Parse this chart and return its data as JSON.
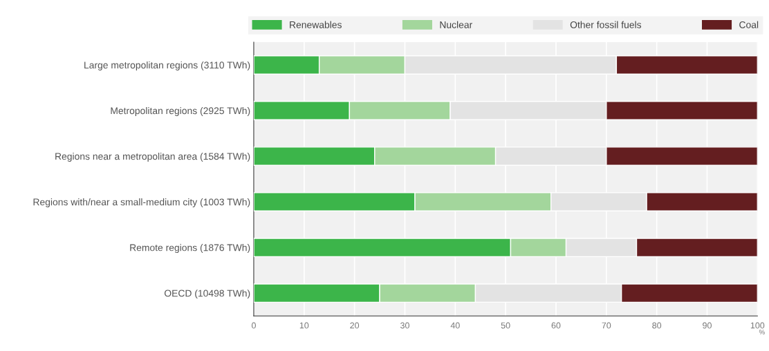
{
  "chart_data": {
    "type": "bar",
    "orientation": "horizontal",
    "stacked": true,
    "categories": [
      "Large metropolitan regions (3110 TWh)",
      "Metropolitan regions (2925 TWh)",
      "Regions near a metropolitan area (1584 TWh)",
      "Regions with/near a small-medium city (1003 TWh)",
      "Remote regions (1876 TWh)",
      "OECD (10498 TWh)"
    ],
    "series": [
      {
        "name": "Renewables",
        "color": "#3cb54a",
        "values": [
          13,
          19,
          24,
          32,
          51,
          25
        ]
      },
      {
        "name": "Nuclear",
        "color": "#a3d69c",
        "values": [
          17,
          20,
          24,
          27,
          11,
          19
        ]
      },
      {
        "name": "Other fossil fuels",
        "color": "#e3e3e3",
        "values": [
          42,
          31,
          22,
          19,
          14,
          29
        ]
      },
      {
        "name": "Coal",
        "color": "#641e20",
        "values": [
          28,
          30,
          30,
          22,
          24,
          27
        ]
      }
    ],
    "xlabel": "%",
    "xlim": [
      0,
      100
    ],
    "xticks": [
      0,
      10,
      20,
      30,
      40,
      50,
      60,
      70,
      80,
      90,
      100
    ],
    "grid": "x",
    "legend": "top"
  }
}
